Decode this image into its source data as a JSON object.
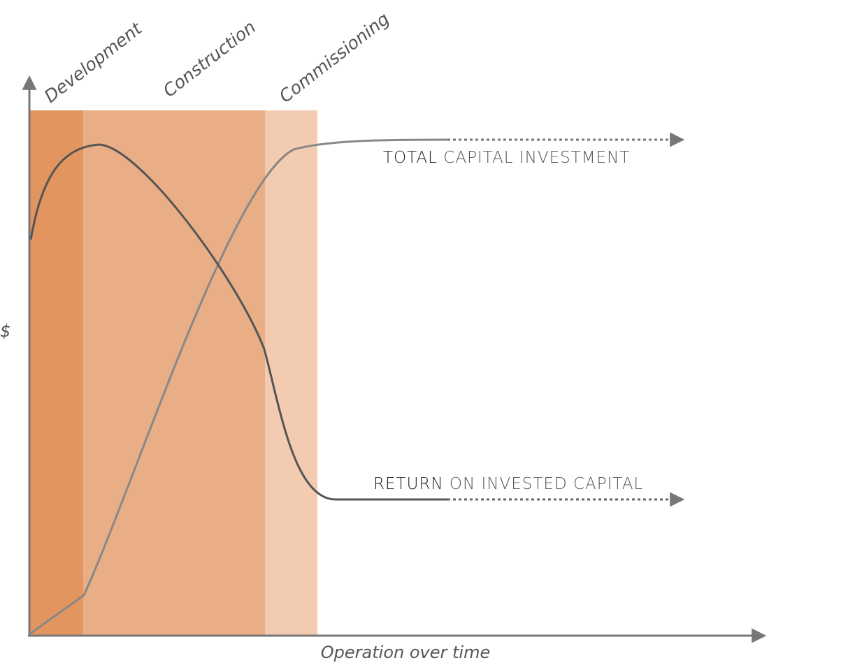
{
  "phases": [
    {
      "label": "Development"
    },
    {
      "label": "Construction"
    },
    {
      "label": "Commissioning"
    }
  ],
  "axes": {
    "y_label": "$",
    "x_label": "Operation over time"
  },
  "curves": [
    {
      "emphasis": "TOTAL",
      "rest": "CAPITAL INVESTMENT"
    },
    {
      "emphasis": "RETURN",
      "rest": "ON INVESTED CAPITAL"
    }
  ]
}
